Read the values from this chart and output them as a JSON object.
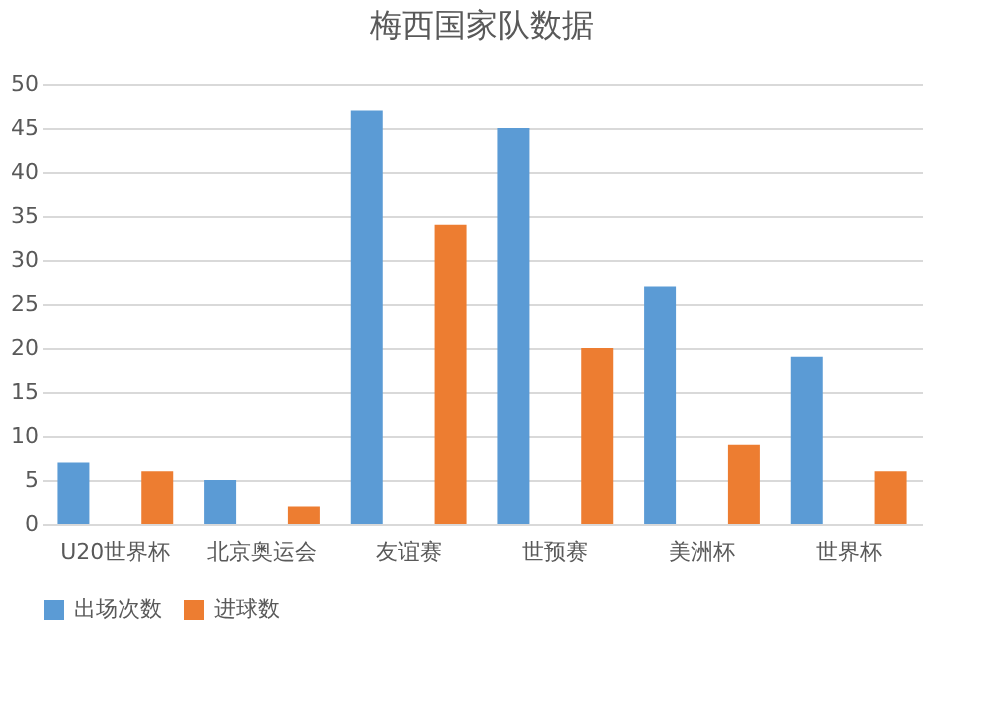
{
  "chart_data": {
    "type": "bar",
    "title": "梅西国家队数据",
    "categories": [
      "U20世界杯",
      "北京奥运会",
      "友谊赛",
      "世预赛",
      "美洲杯",
      "世界杯"
    ],
    "series": [
      {
        "name": "出场次数",
        "color": "#5b9bd5",
        "values": [
          7,
          5,
          47,
          45,
          27,
          19
        ]
      },
      {
        "name": "进球数",
        "color": "#ed7d31",
        "values": [
          6,
          2,
          34,
          20,
          9,
          6
        ]
      }
    ],
    "ylim": [
      0,
      50
    ],
    "yticks": [
      0,
      5,
      10,
      15,
      20,
      25,
      30,
      35,
      40,
      45,
      50
    ],
    "grid": "y",
    "legend": "bottom"
  }
}
